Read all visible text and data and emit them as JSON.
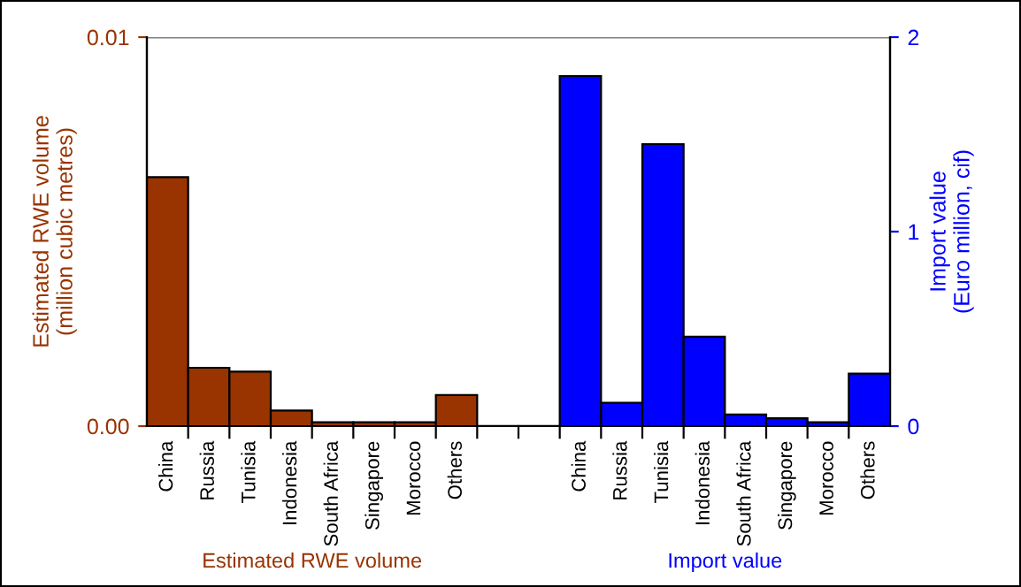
{
  "chart_data": {
    "type": "bar",
    "categories": [
      "China",
      "Russia",
      "Tunisia",
      "Indonesia",
      "South Africa",
      "Singapore",
      "Morocco",
      "Others",
      null,
      null,
      "China",
      "Russia",
      "Tunisia",
      "Indonesia",
      "South Africa",
      "Singapore",
      "Morocco",
      "Others"
    ],
    "series": [
      {
        "name": "Estimated RWE volume",
        "color": "#993300",
        "values": [
          0.0064,
          0.0015,
          0.0014,
          0.0004,
          0.0001,
          0.0001,
          0.0001,
          0.0008,
          null,
          null,
          null,
          null,
          null,
          null,
          null,
          null,
          null,
          null
        ]
      },
      {
        "name": "Import value",
        "color": "#0000ff",
        "axis": "y2",
        "values": [
          null,
          null,
          null,
          null,
          null,
          null,
          null,
          null,
          null,
          null,
          1.8,
          0.12,
          1.45,
          0.46,
          0.06,
          0.04,
          0.02,
          0.27
        ]
      }
    ],
    "ylabel": "Estimated RWE volume\n(million cubic metres)",
    "y2label": "Import value\n(Euro million, cif)",
    "ylim": [
      0,
      0.01
    ],
    "yticks": [
      {
        "value": 0,
        "label": "0.00"
      },
      {
        "value": 0.01,
        "label": "0.01"
      }
    ],
    "y2lim": [
      0,
      2
    ],
    "y2ticks": [
      0,
      1,
      2
    ],
    "grid": "y",
    "legend": false
  }
}
